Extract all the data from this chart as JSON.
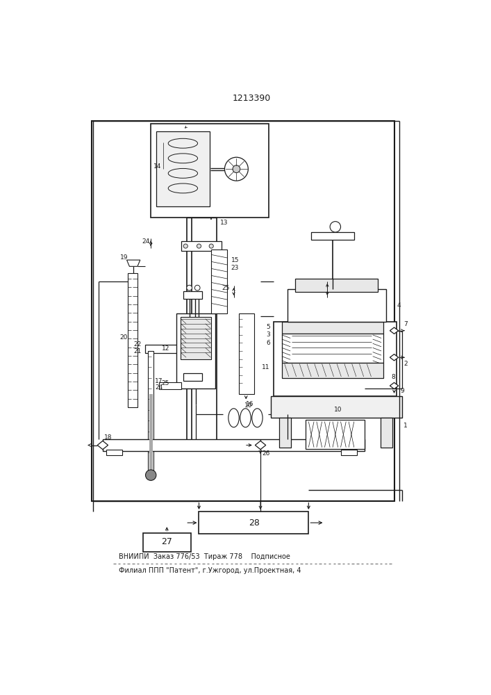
{
  "title": "1213390",
  "footer_line1": "ВНИИПИ  Заказ 776/53  Тираж 778    Подписное",
  "footer_line2": "Филиал ППП \"Патент\", г.Ужгород, ул.Проектная, 4",
  "bg_color": "#ffffff",
  "line_color": "#1a1a1a",
  "fig_width": 7.07,
  "fig_height": 10.0
}
